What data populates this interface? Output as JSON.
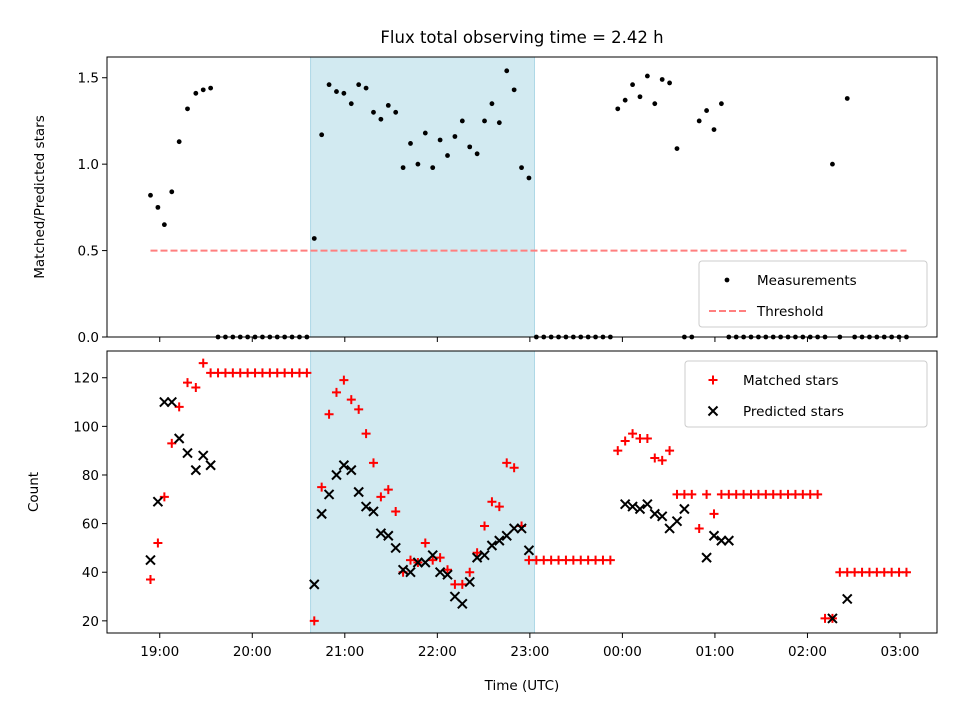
{
  "chart_data": {
    "title": "Flux total observing time = 2.42 h",
    "xlabel": "Time (UTC)",
    "x_unit": "hours UTC, continuing past midnight (24 = 00:00 next day)",
    "xlim": [
      18.43,
      27.4
    ],
    "x_ticks": [
      {
        "value": 19,
        "label": "19:00"
      },
      {
        "value": 20,
        "label": "20:00"
      },
      {
        "value": 21,
        "label": "21:00"
      },
      {
        "value": 22,
        "label": "22:00"
      },
      {
        "value": 23,
        "label": "23:00"
      },
      {
        "value": 24,
        "label": "00:00"
      },
      {
        "value": 25,
        "label": "01:00"
      },
      {
        "value": 26,
        "label": "02:00"
      },
      {
        "value": 27,
        "label": "03:00"
      }
    ],
    "observing_window": {
      "start": 20.63,
      "end": 23.05,
      "color": "#add8e6"
    },
    "panels": [
      {
        "type": "scatter",
        "ylabel": "Matched/Predicted stars",
        "ylim": [
          0,
          1.62
        ],
        "yticks": [
          0.0,
          0.5,
          1.0,
          1.5
        ],
        "ytick_labels": [
          "0.0",
          "0.5",
          "1.0",
          "1.5"
        ],
        "legend_position": "lower-right",
        "series": [
          {
            "name": "Measurements",
            "kind": "dot",
            "color": "#000000",
            "x": [
              18.9,
              18.98,
              19.05,
              19.13,
              19.21,
              19.3,
              19.39,
              19.47,
              19.55,
              19.63,
              19.71,
              19.79,
              19.87,
              19.95,
              20.03,
              20.11,
              20.19,
              20.27,
              20.35,
              20.43,
              20.51,
              20.59,
              20.67,
              20.75,
              20.83,
              20.91,
              20.99,
              21.07,
              21.15,
              21.23,
              21.31,
              21.39,
              21.47,
              21.55,
              21.63,
              21.71,
              21.79,
              21.87,
              21.95,
              22.03,
              22.11,
              22.19,
              22.27,
              22.35,
              22.43,
              22.51,
              22.59,
              22.67,
              22.75,
              22.83,
              22.91,
              22.99,
              23.07,
              23.15,
              23.23,
              23.31,
              23.39,
              23.47,
              23.55,
              23.63,
              23.71,
              23.79,
              23.87,
              23.95,
              24.03,
              24.11,
              24.19,
              24.27,
              24.35,
              24.43,
              24.51,
              24.59,
              24.67,
              24.75,
              24.83,
              24.91,
              24.99,
              25.07,
              25.15,
              25.23,
              25.31,
              25.39,
              25.47,
              25.55,
              25.63,
              25.71,
              25.79,
              25.87,
              25.95,
              26.03,
              26.11,
              26.19,
              26.27,
              26.35,
              26.43,
              26.51,
              26.59,
              26.67,
              26.75,
              26.83,
              26.91,
              26.99,
              27.07
            ],
            "y": [
              0.82,
              0.75,
              0.65,
              0.84,
              1.13,
              1.32,
              1.41,
              1.43,
              1.44,
              0,
              0,
              0,
              0,
              0,
              0,
              0,
              0,
              0,
              0,
              0,
              0,
              0,
              0.57,
              1.17,
              1.46,
              1.42,
              1.41,
              1.35,
              1.46,
              1.44,
              1.3,
              1.26,
              1.34,
              1.3,
              0.98,
              1.12,
              1.0,
              1.18,
              0.98,
              1.14,
              1.05,
              1.16,
              1.25,
              1.1,
              1.06,
              1.25,
              1.35,
              1.24,
              1.54,
              1.43,
              0.98,
              0.92,
              0,
              0,
              0,
              0,
              0,
              0,
              0,
              0,
              0,
              0,
              0,
              1.32,
              1.37,
              1.46,
              1.39,
              1.51,
              1.35,
              1.49,
              1.47,
              1.09,
              0,
              0,
              1.25,
              1.31,
              1.2,
              1.35,
              0,
              0,
              0,
              0,
              0,
              0,
              0,
              0,
              0,
              0,
              0,
              0,
              0,
              0,
              1.0,
              0,
              1.38,
              0,
              0,
              0,
              0,
              0,
              0,
              0,
              0
            ]
          },
          {
            "name": "Threshold",
            "kind": "dashed-line",
            "color": "#ff7f7f",
            "x": [
              18.9,
              27.07
            ],
            "y": [
              0.5,
              0.5
            ]
          }
        ]
      },
      {
        "type": "scatter",
        "ylabel": "Count",
        "ylim": [
          15,
          131
        ],
        "yticks": [
          20,
          40,
          60,
          80,
          100,
          120
        ],
        "ytick_labels": [
          "20",
          "40",
          "60",
          "80",
          "100",
          "120"
        ],
        "legend_position": "upper-right",
        "series": [
          {
            "name": "Matched stars",
            "kind": "plus",
            "color": "#ff0000",
            "x": [
              18.9,
              18.98,
              19.05,
              19.13,
              19.21,
              19.3,
              19.39,
              19.47,
              19.55,
              19.63,
              19.71,
              19.79,
              19.87,
              19.95,
              20.03,
              20.11,
              20.19,
              20.27,
              20.35,
              20.43,
              20.51,
              20.59,
              20.67,
              20.75,
              20.83,
              20.91,
              20.99,
              21.07,
              21.15,
              21.23,
              21.31,
              21.39,
              21.47,
              21.55,
              21.63,
              21.71,
              21.79,
              21.87,
              21.95,
              22.03,
              22.11,
              22.19,
              22.27,
              22.35,
              22.43,
              22.51,
              22.59,
              22.67,
              22.75,
              22.83,
              22.91,
              22.99,
              23.07,
              23.15,
              23.23,
              23.31,
              23.39,
              23.47,
              23.55,
              23.63,
              23.71,
              23.79,
              23.87,
              23.95,
              24.03,
              24.11,
              24.19,
              24.27,
              24.35,
              24.43,
              24.51,
              24.59,
              24.67,
              24.75,
              24.83,
              24.91,
              24.99,
              25.07,
              25.15,
              25.23,
              25.31,
              25.39,
              25.47,
              25.55,
              25.63,
              25.71,
              25.79,
              25.87,
              25.95,
              26.03,
              26.11,
              26.19,
              26.27,
              26.35,
              26.43,
              26.51,
              26.59,
              26.67,
              26.75,
              26.83,
              26.91,
              26.99,
              27.07
            ],
            "y": [
              37,
              52,
              71,
              93,
              108,
              118,
              116,
              126,
              122,
              122,
              122,
              122,
              122,
              122,
              122,
              122,
              122,
              122,
              122,
              122,
              122,
              122,
              20,
              75,
              105,
              114,
              119,
              111,
              107,
              97,
              85,
              71,
              74,
              65,
              40,
              45,
              44,
              52,
              45,
              46,
              41,
              35,
              35,
              40,
              48,
              59,
              69,
              67,
              85,
              83,
              59,
              45,
              45,
              45,
              45,
              45,
              45,
              45,
              45,
              45,
              45,
              45,
              45,
              90,
              94,
              97,
              95,
              95,
              87,
              86,
              90,
              72,
              72,
              72,
              58,
              72,
              64,
              72,
              72,
              72,
              72,
              72,
              72,
              72,
              72,
              72,
              72,
              72,
              72,
              72,
              72,
              21,
              21,
              40,
              40,
              40,
              40,
              40,
              40,
              40,
              40,
              40,
              40
            ]
          },
          {
            "name": "Predicted stars",
            "kind": "x",
            "color": "#000000",
            "x": [
              18.9,
              18.98,
              19.05,
              19.13,
              19.21,
              19.3,
              19.39,
              19.47,
              19.55,
              20.67,
              20.75,
              20.83,
              20.91,
              20.99,
              21.07,
              21.15,
              21.23,
              21.31,
              21.39,
              21.47,
              21.55,
              21.63,
              21.71,
              21.79,
              21.87,
              21.95,
              22.03,
              22.11,
              22.19,
              22.27,
              22.35,
              22.43,
              22.51,
              22.59,
              22.67,
              22.75,
              22.83,
              22.91,
              22.99,
              24.03,
              24.11,
              24.19,
              24.27,
              24.35,
              24.43,
              24.51,
              24.59,
              24.67,
              24.91,
              24.99,
              25.07,
              25.15,
              26.27,
              26.43
            ],
            "y": [
              45,
              69,
              110,
              110,
              95,
              89,
              82,
              88,
              84,
              35,
              64,
              72,
              80,
              84,
              82,
              73,
              67,
              65,
              56,
              55,
              50,
              41,
              40,
              44,
              44,
              47,
              40,
              39,
              30,
              27,
              36,
              46,
              47,
              51,
              53,
              55,
              58,
              58,
              49,
              68,
              67,
              66,
              68,
              64,
              63,
              58,
              61,
              66,
              46,
              55,
              53,
              53,
              21,
              29
            ]
          }
        ]
      }
    ]
  }
}
